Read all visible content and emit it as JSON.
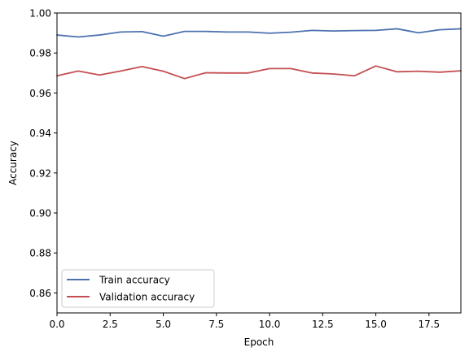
{
  "chart_data": {
    "type": "line",
    "title": "",
    "xlabel": "Epoch",
    "ylabel": "Accuracy",
    "xlim": [
      0,
      19
    ],
    "ylim": [
      0.85,
      1.0
    ],
    "x_ticks": [
      0.0,
      2.5,
      5.0,
      7.5,
      10.0,
      12.5,
      15.0,
      17.5
    ],
    "x_tick_labels": [
      "0.0",
      "2.5",
      "5.0",
      "7.5",
      "10.0",
      "12.5",
      "15.0",
      "17.5"
    ],
    "y_ticks": [
      0.86,
      0.88,
      0.9,
      0.92,
      0.94,
      0.96,
      0.98,
      1.0
    ],
    "y_tick_labels": [
      "0.86",
      "0.88",
      "0.90",
      "0.92",
      "0.94",
      "0.96",
      "0.98",
      "1.00"
    ],
    "grid": false,
    "legend_position": "lower-left",
    "x": [
      0,
      1,
      2,
      3,
      4,
      5,
      6,
      7,
      8,
      9,
      10,
      11,
      12,
      13,
      14,
      15,
      16,
      17,
      18,
      19
    ],
    "series": [
      {
        "name": "Train accuracy",
        "color": "#4c72b0",
        "values": [
          0.989,
          0.988,
          0.989,
          0.9905,
          0.9907,
          0.9884,
          0.9908,
          0.9908,
          0.9905,
          0.9905,
          0.9899,
          0.9904,
          0.9913,
          0.991,
          0.9912,
          0.9913,
          0.9921,
          0.9901,
          0.9916,
          0.9921
        ]
      },
      {
        "name": "Validation accuracy",
        "color": "#c44e52",
        "values": [
          0.9686,
          0.971,
          0.969,
          0.971,
          0.9732,
          0.9709,
          0.9672,
          0.9701,
          0.97,
          0.97,
          0.9722,
          0.9722,
          0.97,
          0.9695,
          0.9686,
          0.9735,
          0.9706,
          0.9709,
          0.9704,
          0.9711
        ]
      }
    ]
  }
}
